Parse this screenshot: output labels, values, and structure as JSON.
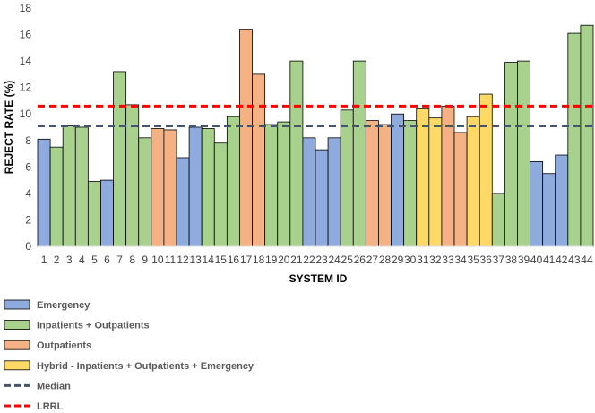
{
  "chart_data": {
    "type": "bar",
    "xlabel": "SYSTEM ID",
    "ylabel": "REJECT RATE (%)",
    "ylim": [
      0,
      18
    ],
    "yticks": [
      0,
      2,
      4,
      6,
      8,
      10,
      12,
      14,
      16,
      18
    ],
    "grid": false,
    "categories": [
      "1",
      "2",
      "3",
      "4",
      "5",
      "6",
      "7",
      "8",
      "9",
      "10",
      "11",
      "12",
      "13",
      "14",
      "15",
      "16",
      "17",
      "18",
      "19",
      "20",
      "21",
      "22",
      "23",
      "24",
      "25",
      "26",
      "27",
      "28",
      "29",
      "30",
      "31",
      "32",
      "33",
      "34",
      "35",
      "36",
      "37",
      "38",
      "39",
      "40",
      "41",
      "42",
      "43",
      "44"
    ],
    "values": [
      8.1,
      7.5,
      9.1,
      9.0,
      4.9,
      5.0,
      13.2,
      10.7,
      8.2,
      8.9,
      8.8,
      6.7,
      9.0,
      8.9,
      7.8,
      9.8,
      16.4,
      13.0,
      9.2,
      9.4,
      14.0,
      8.2,
      7.3,
      8.2,
      10.3,
      14.0,
      9.5,
      9.2,
      10.0,
      9.5,
      10.4,
      9.7,
      10.6,
      8.6,
      9.8,
      11.5,
      4.0,
      13.9,
      14.0,
      6.4,
      5.5,
      6.9,
      16.1,
      16.7
    ],
    "groups": [
      "em",
      "io",
      "io",
      "io",
      "io",
      "em",
      "io",
      "io",
      "io",
      "out",
      "out",
      "em",
      "em",
      "io",
      "io",
      "io",
      "out",
      "out",
      "io",
      "io",
      "io",
      "em",
      "em",
      "em",
      "io",
      "io",
      "out",
      "out",
      "em",
      "io",
      "hyb",
      "hyb",
      "out",
      "out",
      "hyb",
      "hyb",
      "io",
      "io",
      "io",
      "em",
      "em",
      "em",
      "io",
      "io"
    ],
    "group_legend": [
      {
        "key": "em",
        "label": "Emergency",
        "color": "#8faadc"
      },
      {
        "key": "io",
        "label": "Inpatients + Outpatients",
        "color": "#a9d18e"
      },
      {
        "key": "out",
        "label": "Outpatients",
        "color": "#f4b183"
      },
      {
        "key": "hyb",
        "label": "Hybrid - Inpatients + Outpatients + Emergency",
        "color": "#ffd966"
      }
    ],
    "reference_lines": [
      {
        "label": "Median",
        "value": 9.1,
        "color": "#44546a",
        "style": "dashed"
      },
      {
        "label": "LRRL",
        "value": 10.6,
        "color": "#ff0000",
        "style": "dashed"
      }
    ],
    "legend_position": "bottom"
  }
}
